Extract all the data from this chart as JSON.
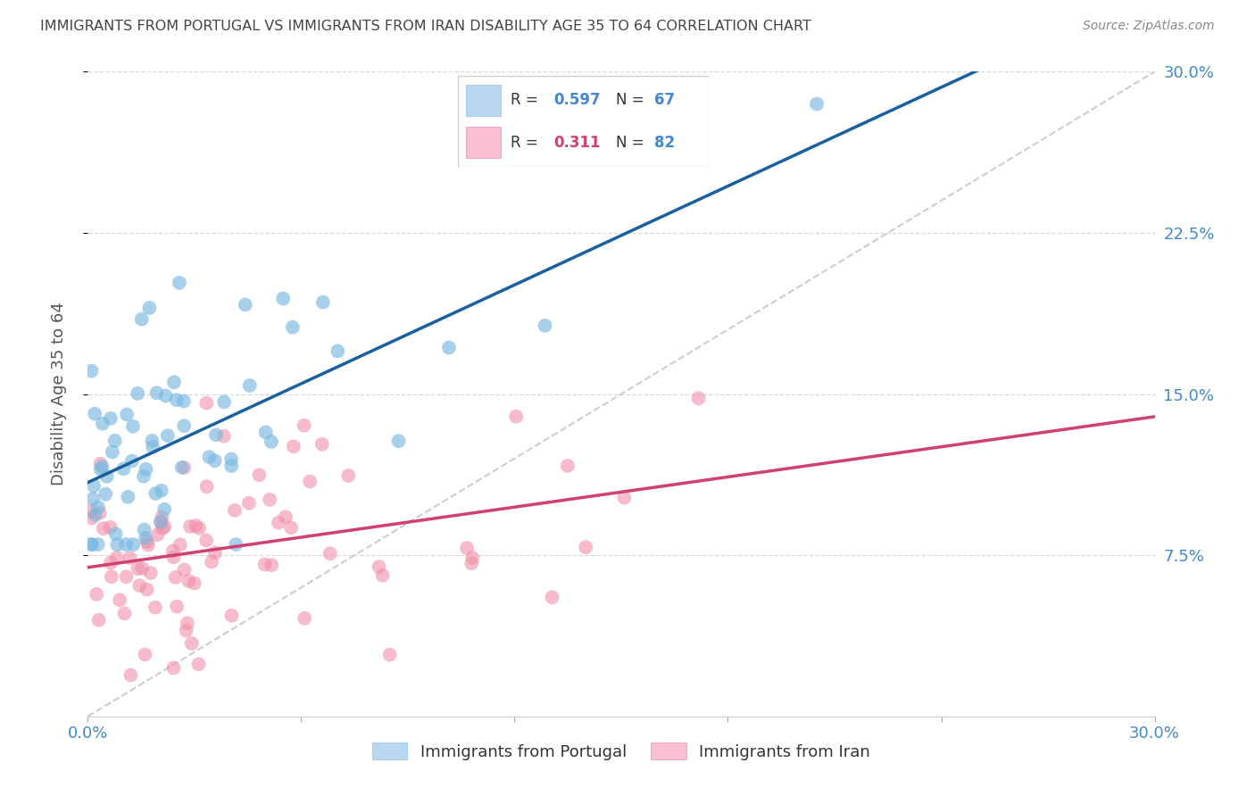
{
  "title": "IMMIGRANTS FROM PORTUGAL VS IMMIGRANTS FROM IRAN DISABILITY AGE 35 TO 64 CORRELATION CHART",
  "source": "Source: ZipAtlas.com",
  "ylabel": "Disability Age 35 to 64",
  "xlim": [
    0.0,
    0.3
  ],
  "ylim": [
    0.0,
    0.3
  ],
  "ytick_vals": [
    0.075,
    0.15,
    0.225,
    0.3
  ],
  "ytick_labels": [
    "7.5%",
    "15.0%",
    "22.5%",
    "30.0%"
  ],
  "xtick_vals": [
    0.0,
    0.06,
    0.12,
    0.18,
    0.24,
    0.3
  ],
  "xtick_labels_bottom": [
    "0.0%",
    "",
    "",
    "",
    "",
    "30.0%"
  ],
  "portugal_color": "#7ab8e0",
  "iran_color": "#f090a8",
  "portugal_legend_color": "#b8d8f0",
  "iran_legend_color": "#f8c0d0",
  "trendline_portugal_color": "#1a5fa0",
  "trendline_iran_color": "#d04070",
  "diagonal_color": "#c8c8c8",
  "R_portugal": 0.597,
  "N_portugal": 67,
  "R_iran": 0.311,
  "N_iran": 82,
  "background_color": "#ffffff",
  "grid_color": "#d8d8d8",
  "title_color": "#444444",
  "axis_label_color": "#4488cc",
  "ylabel_color": "#555555",
  "source_color": "#888888",
  "legend_text_color": "#333333",
  "legend_r_color_portugal": "#4488cc",
  "legend_n_color_portugal": "#4488cc",
  "legend_r_color_iran": "#d04070",
  "legend_n_color_iran": "#4488cc"
}
